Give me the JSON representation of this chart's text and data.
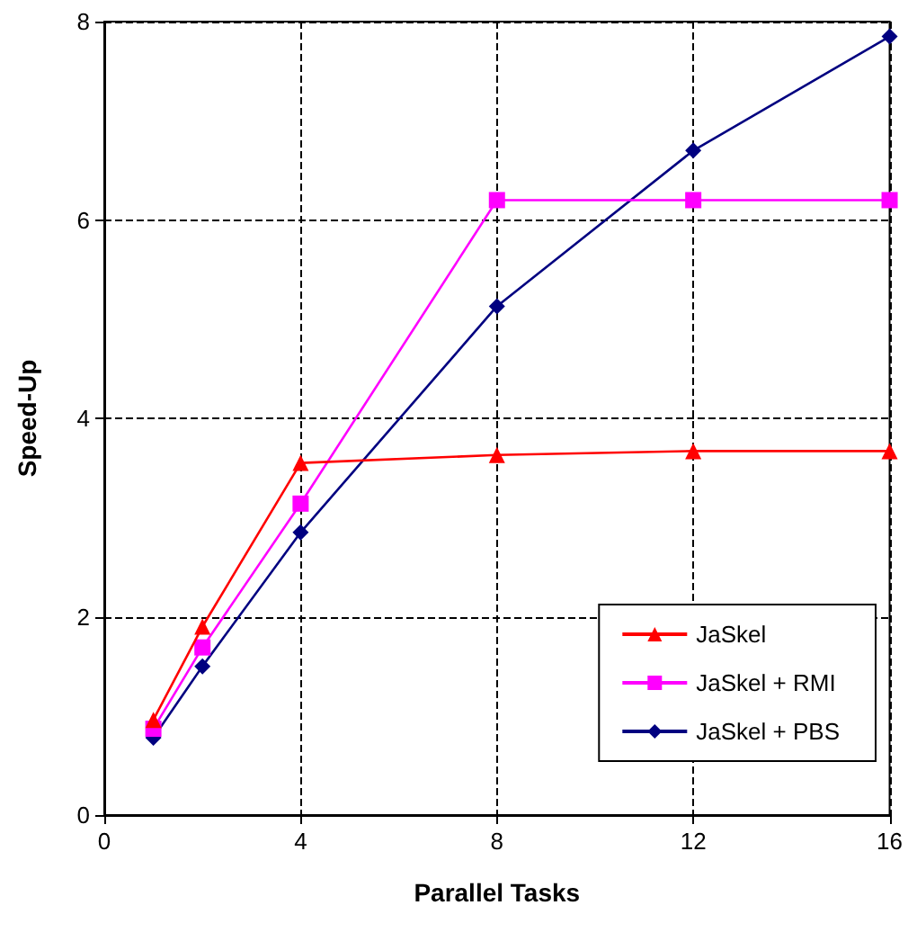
{
  "chart_data": {
    "type": "line",
    "xlabel": "Parallel Tasks",
    "ylabel": "Speed-Up",
    "x": [
      1,
      2,
      4,
      8,
      12,
      16
    ],
    "series": [
      {
        "name": "JaSkel",
        "color": "#ff0000",
        "marker": "triangle",
        "values": [
          0.96,
          1.9,
          3.55,
          3.63,
          3.67,
          3.67
        ]
      },
      {
        "name": "JaSkel + RMI",
        "color": "#ff00ff",
        "marker": "square",
        "values": [
          0.87,
          1.69,
          3.14,
          6.2,
          6.2,
          6.2
        ]
      },
      {
        "name": "JaSkel + PBS",
        "color": "#000080",
        "marker": "diamond",
        "values": [
          0.78,
          1.5,
          2.85,
          5.13,
          6.7,
          7.85
        ]
      }
    ],
    "xlim": [
      0,
      16
    ],
    "xticks": [
      0,
      4,
      8,
      12,
      16
    ],
    "ylim": [
      0,
      8
    ],
    "yticks": [
      0,
      2,
      4,
      6,
      8
    ],
    "grid": true,
    "legend": "bottom right",
    "line_style": "solid"
  }
}
